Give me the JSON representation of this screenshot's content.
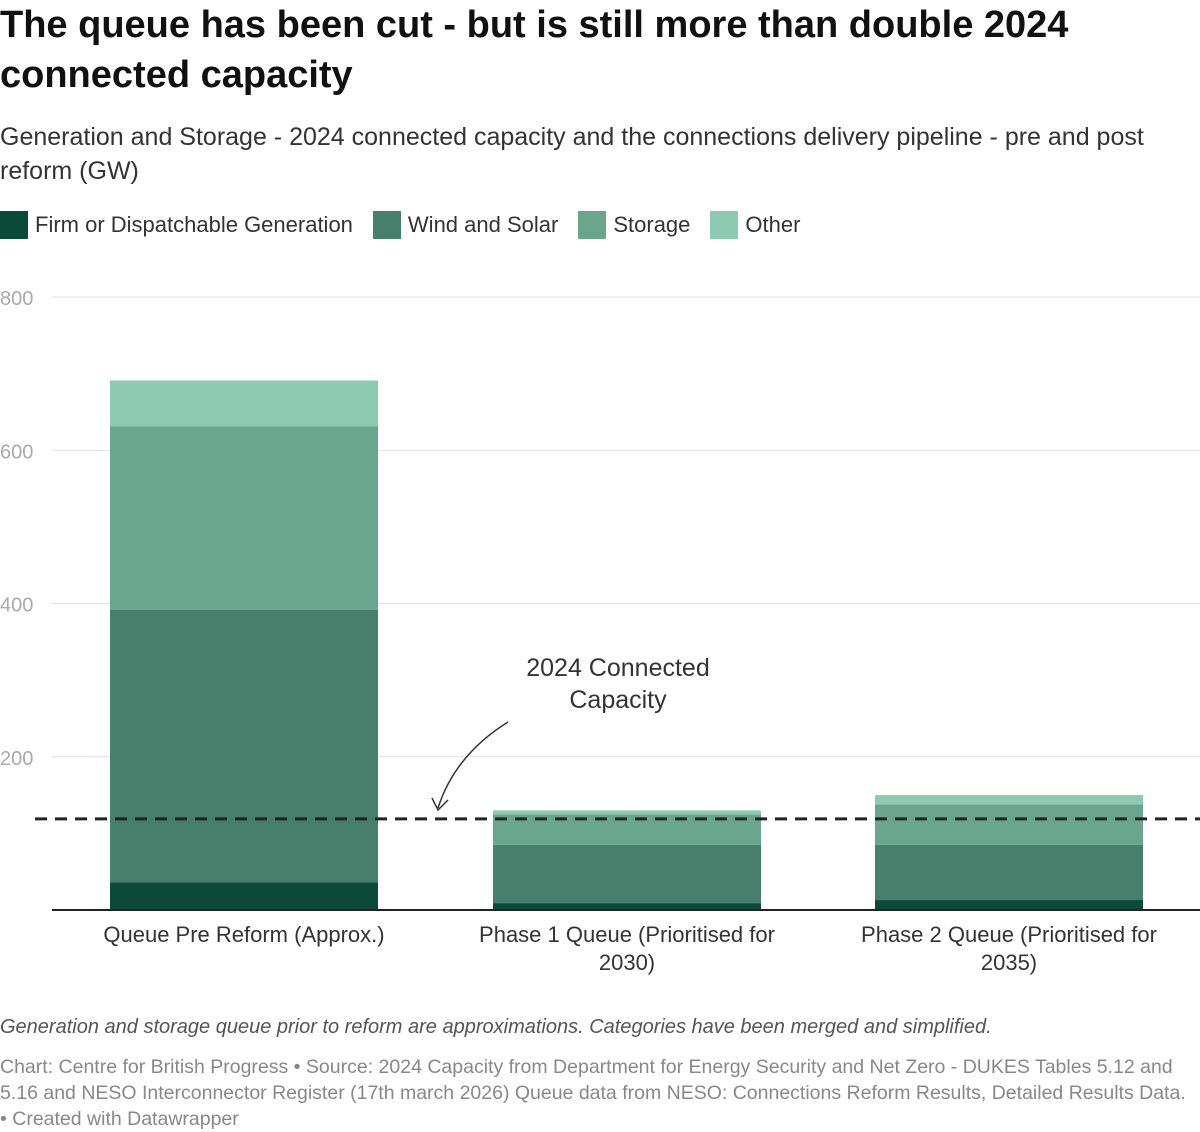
{
  "title": "The queue has been cut - but is still more than double 2024 connected capacity",
  "subtitle": "Generation and Storage - 2024 connected capacity and the connections delivery pipeline - pre and post reform (GW)",
  "notes": "Generation and storage queue prior to reform are approximations. Categories have been merged and simplified.",
  "credit": "Chart: Centre for British Progress • Source: 2024 Capacity from Department for Energy Security and Net Zero - DUKES Tables 5.12 and 5.16 and NESO Interconnector Register (17th march 2026) Queue data from NESO: Connections Reform Results, Detailed Results Data. • Created with Datawrapper",
  "chart_data": {
    "type": "bar",
    "stacked": true,
    "categories": [
      "Queue Pre Reform (Approx.)",
      "Phase 1 Queue (Prioritised for 2030)",
      "Phase 2 Queue (Prioritised for 2035)"
    ],
    "series": [
      {
        "name": "Firm or Dispatchable Generation",
        "color": "#0b4a38",
        "values": [
          36,
          9,
          13
        ]
      },
      {
        "name": "Wind and Solar",
        "color": "#467f6b",
        "values": [
          356,
          76,
          72
        ]
      },
      {
        "name": "Storage",
        "color": "#6aa68e",
        "values": [
          239,
          40,
          53
        ]
      },
      {
        "name": "Other",
        "color": "#8ec9b1",
        "values": [
          60,
          5,
          12
        ]
      }
    ],
    "ylim": [
      0,
      800
    ],
    "yticks": [
      200,
      400,
      600,
      800
    ],
    "grid": true,
    "legend": "top-left",
    "reference_line": {
      "value": 119,
      "label": "2024 Connected Capacity",
      "style": "dashed"
    }
  }
}
